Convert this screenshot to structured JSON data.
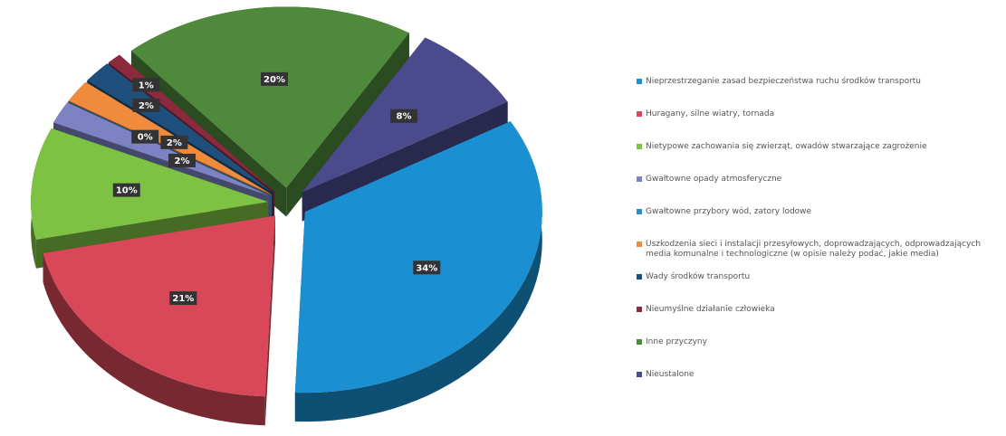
{
  "chart_data": {
    "type": "pie3d",
    "categories": [
      "Nieprzestrzeganie zasad bezpieczeństwa ruchu środków transportu",
      "Huragany, silne wiatry, tornada",
      "Nietypowe zachowania się zwierząt, owadów stwarzające zagrożenie",
      "Gwałtowne opady atmosferyczne",
      "Gwałtowne przybory wód, zatory lodowe",
      "Uszkodzenia sieci i instalacji przesyłowych, doprowadzających, odprowadzających media komunalne i technologiczne (w opisie należy podać, jakie media)",
      "Wady środków transportu",
      "Nieumyślne działanie człowieka",
      "Inne przyczyny",
      "Nieustalone"
    ],
    "values": [
      34,
      21,
      10,
      2,
      0,
      2,
      2,
      1,
      20,
      8
    ],
    "value_labels": [
      "34%",
      "21%",
      "10%",
      "2%",
      "0%",
      "2%",
      "2%",
      "1%",
      "20%",
      "8%"
    ],
    "colors": [
      "#1a8fd2",
      "#d94858",
      "#7dc243",
      "#7c82c2",
      "#2a8ec0",
      "#f08a3c",
      "#1f4f7c",
      "#8a2a3c",
      "#4f8a3c",
      "#4b4a8d"
    ],
    "legend": "right"
  }
}
